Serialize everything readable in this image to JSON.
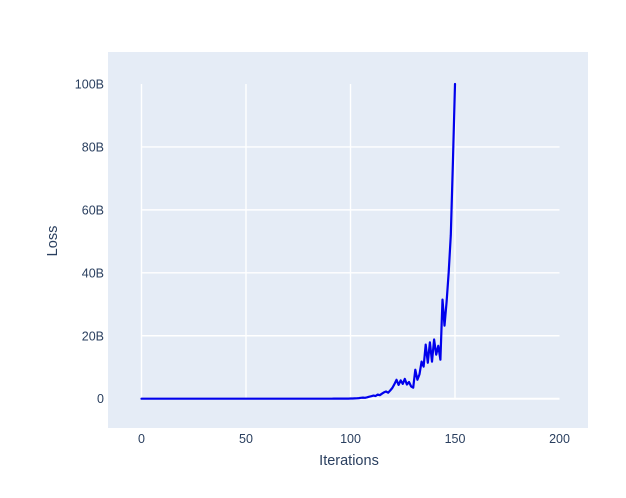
{
  "chart_data": {
    "type": "line",
    "title": "",
    "xlabel": "Iterations",
    "ylabel": "Loss",
    "legend": false,
    "grid": true,
    "plot_bg_color": "#e5ecf6",
    "grid_color": "#ffffff",
    "text_color": "#2a3f5f",
    "line_color": "#0101ec",
    "x_axis": {
      "ticks": [
        {
          "value": 0,
          "label": "0",
          "grid": true
        },
        {
          "value": 50,
          "label": "50",
          "grid": true
        },
        {
          "value": 100,
          "label": "100",
          "grid": true
        },
        {
          "value": 150,
          "label": "150",
          "grid": true
        },
        {
          "value": 200,
          "label": "200",
          "grid": false
        }
      ],
      "approx_range": [
        -16,
        215
      ]
    },
    "y_axis": {
      "unit": "B",
      "ticks": [
        {
          "value": 0,
          "label": "0",
          "grid": true
        },
        {
          "value": 20,
          "label": "20B",
          "grid": true
        },
        {
          "value": 40,
          "label": "40B",
          "grid": true
        },
        {
          "value": 60,
          "label": "60B",
          "grid": true
        },
        {
          "value": 80,
          "label": "80B",
          "grid": true
        },
        {
          "value": 100,
          "label": "100B",
          "grid": false
        }
      ],
      "approx_range_B": [
        -9.5,
        110.5
      ]
    },
    "series": [
      {
        "name": "loss",
        "color": "#0101ec",
        "x_start": 0,
        "x_step": 1,
        "x_label_meaning": "iteration",
        "values_unit_B": true,
        "values": [
          0.01,
          0.01,
          0.01,
          0.01,
          0.01,
          0.01,
          0.01,
          0.01,
          0.01,
          0.01,
          0.01,
          0.01,
          0.01,
          0.01,
          0.01,
          0.01,
          0.01,
          0.01,
          0.01,
          0.01,
          0.01,
          0.01,
          0.01,
          0.01,
          0.01,
          0.01,
          0.01,
          0.01,
          0.01,
          0.01,
          0.01,
          0.01,
          0.01,
          0.01,
          0.01,
          0.01,
          0.01,
          0.01,
          0.01,
          0.01,
          0.01,
          0.01,
          0.01,
          0.01,
          0.01,
          0.01,
          0.01,
          0.01,
          0.01,
          0.01,
          0.01,
          0.01,
          0.01,
          0.01,
          0.01,
          0.01,
          0.01,
          0.01,
          0.01,
          0.01,
          0.01,
          0.01,
          0.01,
          0.01,
          0.01,
          0.01,
          0.01,
          0.01,
          0.01,
          0.01,
          0.01,
          0.01,
          0.01,
          0.01,
          0.01,
          0.01,
          0.01,
          0.01,
          0.01,
          0.01,
          0.01,
          0.01,
          0.01,
          0.01,
          0.01,
          0.01,
          0.01,
          0.01,
          0.01,
          0.01,
          0.01,
          0.01,
          0.02,
          0.02,
          0.02,
          0.02,
          0.03,
          0.03,
          0.04,
          0.04,
          0.05,
          0.07,
          0.1,
          0.14,
          0.2,
          0.28,
          0.35,
          0.3,
          0.45,
          0.62,
          0.8,
          1.0,
          0.85,
          1.3,
          1.1,
          1.6,
          2.0,
          2.3,
          1.9,
          2.6,
          3.4,
          4.6,
          6.0,
          4.4,
          5.8,
          4.7,
          6.3,
          4.5,
          5.3,
          3.9,
          3.5,
          9.2,
          6.0,
          7.8,
          11.8,
          10.2,
          17.2,
          11.4,
          17.9,
          11.8,
          18.8,
          14.0,
          16.8,
          12.4,
          31.5,
          23.2,
          30.8,
          40.2,
          52.0,
          75.0,
          100.0
        ]
      }
    ]
  }
}
